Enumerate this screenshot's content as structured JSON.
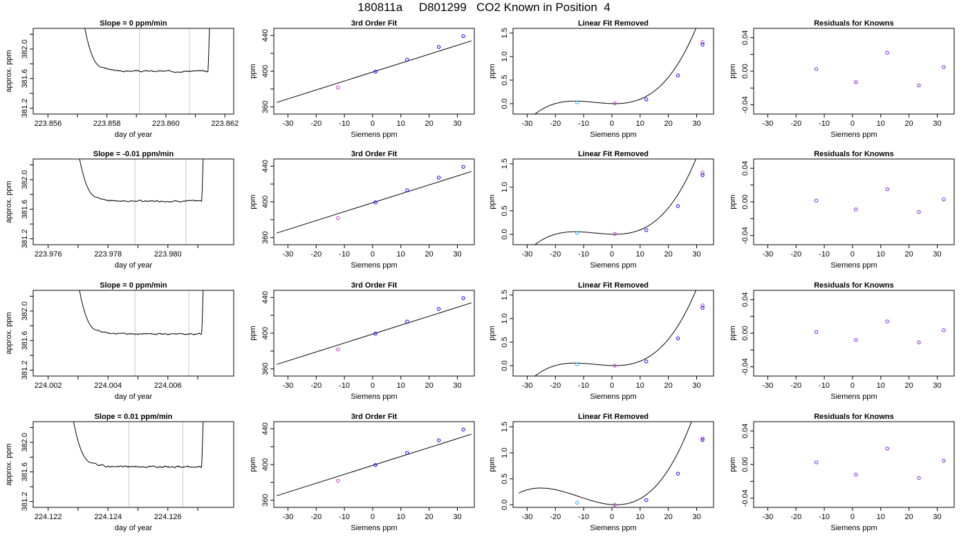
{
  "title": "180811a     D801299   CO2 Known in Position  4",
  "colors": {
    "frame": "#000000",
    "trace": "#000000",
    "marker_lines": "#c8c8c8",
    "point_blue": "#0000ff",
    "point_magenta": "#cc33cc",
    "point_cyan": "#22aaee",
    "residual_points": "#7a22ee"
  },
  "chart_data": [
    {
      "type": "line",
      "row": 1,
      "col": 1,
      "title": "Slope =  0  ppm/min",
      "xlabel": "day of year",
      "ylabel": "approx. ppm",
      "xlim": [
        223.8555,
        223.8623
      ],
      "ylim": [
        381.12,
        382.28
      ],
      "xticks": [
        223.856,
        223.857,
        223.858,
        223.859,
        223.86,
        223.861,
        223.862
      ],
      "xtick_labels": [
        "223.856",
        "",
        "223.858",
        "",
        "223.860",
        "",
        "223.862"
      ],
      "yticks": [
        381.2,
        381.4,
        381.6,
        381.8,
        382.0,
        382.2
      ],
      "ytick_labels": [
        "381.2",
        "",
        "381.6",
        "",
        "382.0",
        ""
      ],
      "vlines": [
        223.8591,
        223.8608
      ],
      "trace": {
        "start": 223.8571,
        "end": 223.8615,
        "level": 381.7,
        "noise": 0.006,
        "seed": 3
      }
    },
    {
      "type": "scatter",
      "row": 1,
      "col": 2,
      "title": "3rd Order Fit",
      "xlabel": "Siemens ppm",
      "ylabel": "ppm",
      "xlim": [
        -35,
        36
      ],
      "ylim": [
        352,
        448
      ],
      "xticks": [
        -30,
        -20,
        -10,
        0,
        10,
        20,
        30
      ],
      "yticks": [
        360,
        380,
        400,
        420,
        440
      ],
      "ytick_labels": [
        "360",
        "",
        "400",
        "",
        "440"
      ],
      "fit_line": {
        "x0": -34,
        "x1": 35,
        "slope": 1.0,
        "intercept": 399
      },
      "points": [
        {
          "x": -12.3,
          "y": 381.8,
          "color": "point_magenta"
        },
        {
          "x": 1.0,
          "y": 399.4,
          "color": "point_blue"
        },
        {
          "x": 12.2,
          "y": 413.0,
          "color": "point_blue"
        },
        {
          "x": 23.4,
          "y": 427.1,
          "color": "point_blue"
        },
        {
          "x": 32.1,
          "y": 439.2,
          "color": "point_blue"
        }
      ]
    },
    {
      "type": "scatter",
      "row": 1,
      "col": 3,
      "title": "Linear Fit Removed",
      "xlabel": "Siemens ppm",
      "ylabel": "ppm",
      "xlim": [
        -35,
        36
      ],
      "ylim": [
        -0.22,
        1.6
      ],
      "xticks": [
        -30,
        -20,
        -10,
        0,
        10,
        20,
        30
      ],
      "yticks": [
        0.0,
        0.5,
        1.0,
        1.5
      ],
      "ytick_labels": [
        "0.0",
        "0.5",
        "1.0",
        "1.5"
      ],
      "curve": {
        "x0": -33,
        "x1": 34.5,
        "a": 3.88e-05,
        "b": 0.0007,
        "c": -0.00155,
        "d": 0.002
      },
      "points": [
        {
          "x": -12.3,
          "y": 0.03,
          "color": "point_cyan"
        },
        {
          "x": 1.0,
          "y": 0.01,
          "color": "point_magenta"
        },
        {
          "x": 12.2,
          "y": 0.09,
          "color": "point_blue"
        },
        {
          "x": 23.4,
          "y": 0.6,
          "color": "point_blue"
        },
        {
          "x": 32.1,
          "y": 1.31,
          "color": "point_magenta"
        },
        {
          "x": 32.1,
          "y": 1.26,
          "color": "point_blue"
        }
      ]
    },
    {
      "type": "scatter",
      "row": 1,
      "col": 4,
      "title": "Residuals for Knowns",
      "xlabel": "Siemens ppm",
      "ylabel": "ppm",
      "xlim": [
        -35,
        36
      ],
      "ylim": [
        -0.051,
        0.051
      ],
      "xticks": [
        -30,
        -20,
        -10,
        0,
        10,
        20,
        30
      ],
      "yticks": [
        -0.04,
        -0.02,
        0.0,
        0.02,
        0.04
      ],
      "ytick_labels": [
        "-0.04",
        "",
        "0.00",
        "",
        "0.04"
      ],
      "points": [
        {
          "x": -12.8,
          "y": 0.0025,
          "color": "residual_points"
        },
        {
          "x": 1.2,
          "y": -0.013,
          "color": "residual_points"
        },
        {
          "x": 12.3,
          "y": 0.022,
          "color": "residual_points"
        },
        {
          "x": 23.5,
          "y": -0.017,
          "color": "residual_points"
        },
        {
          "x": 32.3,
          "y": 0.005,
          "color": "residual_points"
        }
      ]
    },
    {
      "type": "line",
      "row": 2,
      "col": 1,
      "title": "Slope =  -0.01  ppm/min",
      "xlabel": "day of year",
      "ylabel": "approx. ppm",
      "xlim": [
        223.9755,
        223.9822
      ],
      "ylim": [
        381.12,
        382.28
      ],
      "xticks": [
        223.976,
        223.977,
        223.978,
        223.979,
        223.98,
        223.981
      ],
      "xtick_labels": [
        "223.976",
        "",
        "223.978",
        "",
        "223.980",
        ""
      ],
      "yticks": [
        381.2,
        381.4,
        381.6,
        381.8,
        382.0,
        382.2
      ],
      "ytick_labels": [
        "381.2",
        "",
        "381.6",
        "",
        "382.0",
        ""
      ],
      "vlines": [
        223.9789,
        223.9806
      ],
      "trace": {
        "start": 223.9769,
        "end": 223.9812,
        "level": 381.71,
        "noise": 0.006,
        "seed": 7
      }
    },
    {
      "type": "scatter",
      "row": 2,
      "col": 2,
      "title": "3rd Order Fit",
      "xlabel": "Siemens ppm",
      "ylabel": "ppm",
      "xlim": [
        -35,
        36
      ],
      "ylim": [
        352,
        448
      ],
      "xticks": [
        -30,
        -20,
        -10,
        0,
        10,
        20,
        30
      ],
      "yticks": [
        360,
        380,
        400,
        420,
        440
      ],
      "ytick_labels": [
        "360",
        "",
        "400",
        "",
        "440"
      ],
      "fit_line": {
        "x0": -34,
        "x1": 35,
        "slope": 1.0,
        "intercept": 399
      },
      "points": [
        {
          "x": -12.3,
          "y": 381.8,
          "color": "point_magenta"
        },
        {
          "x": 1.0,
          "y": 399.4,
          "color": "point_blue"
        },
        {
          "x": 12.2,
          "y": 413.0,
          "color": "point_blue"
        },
        {
          "x": 23.4,
          "y": 427.1,
          "color": "point_blue"
        },
        {
          "x": 32.1,
          "y": 439.2,
          "color": "point_blue"
        }
      ]
    },
    {
      "type": "scatter",
      "row": 2,
      "col": 3,
      "title": "Linear Fit Removed",
      "xlabel": "Siemens ppm",
      "ylabel": "ppm",
      "xlim": [
        -35,
        36
      ],
      "ylim": [
        -0.22,
        1.6
      ],
      "xticks": [
        -30,
        -20,
        -10,
        0,
        10,
        20,
        30
      ],
      "yticks": [
        0.0,
        0.5,
        1.0,
        1.5
      ],
      "ytick_labels": [
        "0.0",
        "0.5",
        "1.0",
        "1.5"
      ],
      "curve": {
        "x0": -33,
        "x1": 34.5,
        "a": 3.88e-05,
        "b": 0.0007,
        "c": -0.00155,
        "d": 0.002
      },
      "points": [
        {
          "x": -12.3,
          "y": 0.03,
          "color": "point_cyan"
        },
        {
          "x": 1.0,
          "y": 0.01,
          "color": "point_magenta"
        },
        {
          "x": 12.2,
          "y": 0.09,
          "color": "point_blue"
        },
        {
          "x": 23.4,
          "y": 0.6,
          "color": "point_blue"
        },
        {
          "x": 32.1,
          "y": 1.31,
          "color": "point_magenta"
        },
        {
          "x": 32.1,
          "y": 1.26,
          "color": "point_blue"
        }
      ]
    },
    {
      "type": "scatter",
      "row": 2,
      "col": 4,
      "title": "Residuals for Knowns",
      "xlabel": "Siemens ppm",
      "ylabel": "ppm",
      "xlim": [
        -35,
        36
      ],
      "ylim": [
        -0.051,
        0.051
      ],
      "xticks": [
        -30,
        -20,
        -10,
        0,
        10,
        20,
        30
      ],
      "yticks": [
        -0.04,
        -0.02,
        0.0,
        0.02,
        0.04
      ],
      "ytick_labels": [
        "-0.04",
        "",
        "0.00",
        "",
        "0.04"
      ],
      "points": [
        {
          "x": -12.8,
          "y": 0.0015,
          "color": "residual_points"
        },
        {
          "x": 1.2,
          "y": -0.009,
          "color": "residual_points"
        },
        {
          "x": 12.3,
          "y": 0.015,
          "color": "residual_points"
        },
        {
          "x": 23.5,
          "y": -0.012,
          "color": "residual_points"
        },
        {
          "x": 32.3,
          "y": 0.003,
          "color": "residual_points"
        }
      ]
    },
    {
      "type": "line",
      "row": 3,
      "col": 1,
      "title": "Slope =  0  ppm/min",
      "xlabel": "day of year",
      "ylabel": "approx. ppm",
      "xlim": [
        224.0015,
        224.0082
      ],
      "ylim": [
        381.12,
        382.28
      ],
      "xticks": [
        224.002,
        224.003,
        224.004,
        224.005,
        224.006,
        224.007
      ],
      "xtick_labels": [
        "224.002",
        "",
        "224.004",
        "",
        "224.006",
        ""
      ],
      "yticks": [
        381.2,
        381.4,
        381.6,
        381.8,
        382.0,
        382.2
      ],
      "ytick_labels": [
        "381.2",
        "",
        "381.6",
        "",
        "382.0",
        ""
      ],
      "vlines": [
        224.0049,
        224.0067
      ],
      "trace": {
        "start": 224.0029,
        "end": 224.0072,
        "level": 381.69,
        "noise": 0.006,
        "seed": 11
      }
    },
    {
      "type": "scatter",
      "row": 3,
      "col": 2,
      "title": "3rd Order Fit",
      "xlabel": "Siemens ppm",
      "ylabel": "ppm",
      "xlim": [
        -35,
        36
      ],
      "ylim": [
        352,
        448
      ],
      "xticks": [
        -30,
        -20,
        -10,
        0,
        10,
        20,
        30
      ],
      "yticks": [
        360,
        380,
        400,
        420,
        440
      ],
      "ytick_labels": [
        "360",
        "",
        "400",
        "",
        "440"
      ],
      "fit_line": {
        "x0": -34,
        "x1": 35,
        "slope": 1.0,
        "intercept": 399
      },
      "points": [
        {
          "x": -12.3,
          "y": 381.8,
          "color": "point_magenta"
        },
        {
          "x": 1.0,
          "y": 399.4,
          "color": "point_blue"
        },
        {
          "x": 12.2,
          "y": 413.0,
          "color": "point_blue"
        },
        {
          "x": 23.4,
          "y": 427.1,
          "color": "point_blue"
        },
        {
          "x": 32.1,
          "y": 439.2,
          "color": "point_blue"
        }
      ]
    },
    {
      "type": "scatter",
      "row": 3,
      "col": 3,
      "title": "Linear Fit Removed",
      "xlabel": "Siemens ppm",
      "ylabel": "ppm",
      "xlim": [
        -35,
        36
      ],
      "ylim": [
        -0.22,
        1.6
      ],
      "xticks": [
        -30,
        -20,
        -10,
        0,
        10,
        20,
        30
      ],
      "yticks": [
        0.0,
        0.5,
        1.0,
        1.5
      ],
      "ytick_labels": [
        "0.0",
        "0.5",
        "1.0",
        "1.5"
      ],
      "curve": {
        "x0": -33,
        "x1": 34.5,
        "a": 3.88e-05,
        "b": 0.0007,
        "c": -0.00155,
        "d": 0.002
      },
      "points": [
        {
          "x": -12.3,
          "y": 0.03,
          "color": "point_cyan"
        },
        {
          "x": 1.0,
          "y": 0.0,
          "color": "point_magenta"
        },
        {
          "x": 12.2,
          "y": 0.09,
          "color": "point_blue"
        },
        {
          "x": 23.4,
          "y": 0.58,
          "color": "point_blue"
        },
        {
          "x": 32.1,
          "y": 1.28,
          "color": "point_magenta"
        },
        {
          "x": 32.1,
          "y": 1.23,
          "color": "point_blue"
        }
      ]
    },
    {
      "type": "scatter",
      "row": 3,
      "col": 4,
      "title": "Residuals for Knowns",
      "xlabel": "Siemens ppm",
      "ylabel": "ppm",
      "xlim": [
        -35,
        36
      ],
      "ylim": [
        -0.051,
        0.051
      ],
      "xticks": [
        -30,
        -20,
        -10,
        0,
        10,
        20,
        30
      ],
      "yticks": [
        -0.04,
        -0.02,
        0.0,
        0.02,
        0.04
      ],
      "ytick_labels": [
        "-0.04",
        "",
        "0.00",
        "",
        "0.04"
      ],
      "points": [
        {
          "x": -12.8,
          "y": 0.0015,
          "color": "residual_points"
        },
        {
          "x": 1.2,
          "y": -0.008,
          "color": "residual_points"
        },
        {
          "x": 12.3,
          "y": 0.014,
          "color": "residual_points"
        },
        {
          "x": 23.5,
          "y": -0.011,
          "color": "residual_points"
        },
        {
          "x": 32.3,
          "y": 0.0035,
          "color": "residual_points"
        }
      ]
    },
    {
      "type": "line",
      "row": 4,
      "col": 1,
      "title": "Slope =  0.01  ppm/min",
      "xlabel": "day of year",
      "ylabel": "approx. ppm",
      "xlim": [
        224.1215,
        224.1282
      ],
      "ylim": [
        381.12,
        382.28
      ],
      "xticks": [
        224.122,
        224.123,
        224.124,
        224.125,
        224.126,
        224.127
      ],
      "xtick_labels": [
        "224.122",
        "",
        "224.124",
        "",
        "224.126",
        ""
      ],
      "yticks": [
        381.2,
        381.4,
        381.6,
        381.8,
        382.0,
        382.2
      ],
      "ytick_labels": [
        "381.2",
        "",
        "381.6",
        "",
        "382.0",
        ""
      ],
      "vlines": [
        224.1247,
        224.1265
      ],
      "trace": {
        "start": 224.1227,
        "end": 224.1272,
        "level": 381.67,
        "noise": 0.007,
        "seed": 19
      }
    },
    {
      "type": "scatter",
      "row": 4,
      "col": 2,
      "title": "3rd Order Fit",
      "xlabel": "Siemens ppm",
      "ylabel": "ppm",
      "xlim": [
        -35,
        36
      ],
      "ylim": [
        352,
        448
      ],
      "xticks": [
        -30,
        -20,
        -10,
        0,
        10,
        20,
        30
      ],
      "yticks": [
        360,
        380,
        400,
        420,
        440
      ],
      "ytick_labels": [
        "360",
        "",
        "400",
        "",
        "440"
      ],
      "fit_line": {
        "x0": -34,
        "x1": 35,
        "slope": 1.0,
        "intercept": 399
      },
      "points": [
        {
          "x": -12.3,
          "y": 381.8,
          "color": "point_magenta"
        },
        {
          "x": 1.0,
          "y": 399.4,
          "color": "point_blue"
        },
        {
          "x": 12.2,
          "y": 413.0,
          "color": "point_blue"
        },
        {
          "x": 23.4,
          "y": 427.1,
          "color": "point_blue"
        },
        {
          "x": 32.1,
          "y": 439.2,
          "color": "point_blue"
        }
      ]
    },
    {
      "type": "scatter",
      "row": 4,
      "col": 3,
      "title": "Linear Fit Removed",
      "xlabel": "Siemens ppm",
      "ylabel": "ppm",
      "xlim": [
        -35,
        36
      ],
      "ylim": [
        -0.05,
        1.6
      ],
      "xticks": [
        -30,
        -20,
        -10,
        0,
        10,
        20,
        30
      ],
      "yticks": [
        0.0,
        0.5,
        1.0,
        1.5
      ],
      "ytick_labels": [
        "0.0",
        "0.5",
        "1.0",
        "1.5"
      ],
      "curve": {
        "x0": -33,
        "x1": 34.5,
        "a": 3.38e-05,
        "b": 0.0012,
        "c": -0.0039,
        "d": 0.003
      },
      "points": [
        {
          "x": -12.3,
          "y": 0.04,
          "color": "point_cyan"
        },
        {
          "x": 1.0,
          "y": 0.0,
          "color": "point_magenta"
        },
        {
          "x": 12.2,
          "y": 0.09,
          "color": "point_blue"
        },
        {
          "x": 23.4,
          "y": 0.6,
          "color": "point_blue"
        },
        {
          "x": 32.1,
          "y": 1.28,
          "color": "point_magenta"
        },
        {
          "x": 32.1,
          "y": 1.25,
          "color": "point_blue"
        }
      ]
    },
    {
      "type": "scatter",
      "row": 4,
      "col": 4,
      "title": "Residuals for Knowns",
      "xlabel": "Siemens ppm",
      "ylabel": "ppm",
      "xlim": [
        -35,
        36
      ],
      "ylim": [
        -0.051,
        0.051
      ],
      "xticks": [
        -30,
        -20,
        -10,
        0,
        10,
        20,
        30
      ],
      "yticks": [
        -0.04,
        -0.02,
        0.0,
        0.02,
        0.04
      ],
      "ytick_labels": [
        "-0.04",
        "",
        "0.00",
        "",
        "0.04"
      ],
      "points": [
        {
          "x": -12.8,
          "y": 0.0025,
          "color": "residual_points"
        },
        {
          "x": 1.2,
          "y": -0.012,
          "color": "residual_points"
        },
        {
          "x": 12.3,
          "y": 0.019,
          "color": "residual_points"
        },
        {
          "x": 23.5,
          "y": -0.016,
          "color": "residual_points"
        },
        {
          "x": 32.3,
          "y": 0.0045,
          "color": "residual_points"
        }
      ]
    }
  ]
}
